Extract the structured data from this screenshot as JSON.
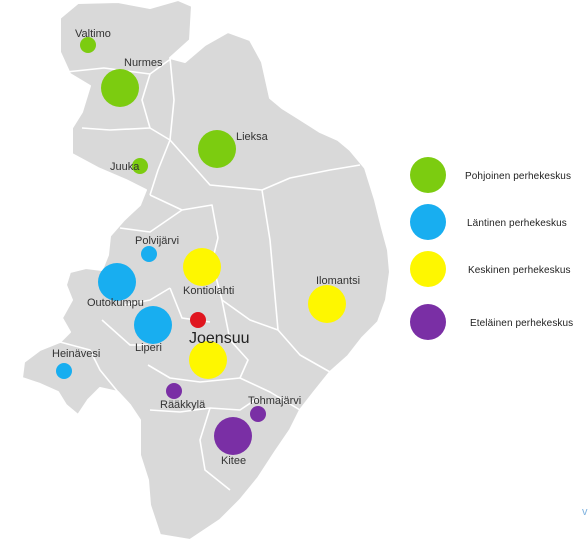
{
  "colors": {
    "pohjoinen": "#7ccc10",
    "lantinen": "#18aef0",
    "keskinen": "#fef700",
    "etelainen": "#7a2fa5",
    "joensuu_center": "#e0161f",
    "region_fill": "#d9d9d9",
    "region_border": "#ffffff"
  },
  "legend": [
    {
      "label": "Pohjoinen perhekeskus",
      "color_key": "pohjoinen"
    },
    {
      "label": "Läntinen perhekeskus",
      "color_key": "lantinen"
    },
    {
      "label": "Keskinen perhekeskus",
      "color_key": "keskinen"
    },
    {
      "label": "Eteläinen perhekeskus",
      "color_key": "etelainen"
    }
  ],
  "locations": [
    {
      "id": "valtimo",
      "name": "Valtimo",
      "group": "pohjoinen",
      "size": "small"
    },
    {
      "id": "nurmes",
      "name": "Nurmes",
      "group": "pohjoinen",
      "size": "large"
    },
    {
      "id": "lieksa",
      "name": "Lieksa",
      "group": "pohjoinen",
      "size": "large"
    },
    {
      "id": "juuka",
      "name": "Juuka",
      "group": "pohjoinen",
      "size": "small"
    },
    {
      "id": "polvijarvi",
      "name": "Polvijärvi",
      "group": "lantinen",
      "size": "small"
    },
    {
      "id": "outokumpu",
      "name": "Outokumpu",
      "group": "lantinen",
      "size": "large"
    },
    {
      "id": "liperi",
      "name": "Liperi",
      "group": "lantinen",
      "size": "large"
    },
    {
      "id": "heinavesi",
      "name": "Heinävesi",
      "group": "lantinen",
      "size": "small"
    },
    {
      "id": "kontiolahti",
      "name": "Kontiolahti",
      "group": "keskinen",
      "size": "large"
    },
    {
      "id": "ilomantsi",
      "name": "Ilomantsi",
      "group": "keskinen",
      "size": "large"
    },
    {
      "id": "joensuu",
      "name": "Joensuu",
      "group": "keskinen",
      "size": "large",
      "major": true
    },
    {
      "id": "raakkyla",
      "name": "Rääkkylä",
      "group": "etelainen",
      "size": "small"
    },
    {
      "id": "tohmajarvi",
      "name": "Tohmajärvi",
      "group": "etelainen",
      "size": "small"
    },
    {
      "id": "kitee",
      "name": "Kitee",
      "group": "etelainen",
      "size": "large"
    }
  ],
  "corner_mark": "v"
}
